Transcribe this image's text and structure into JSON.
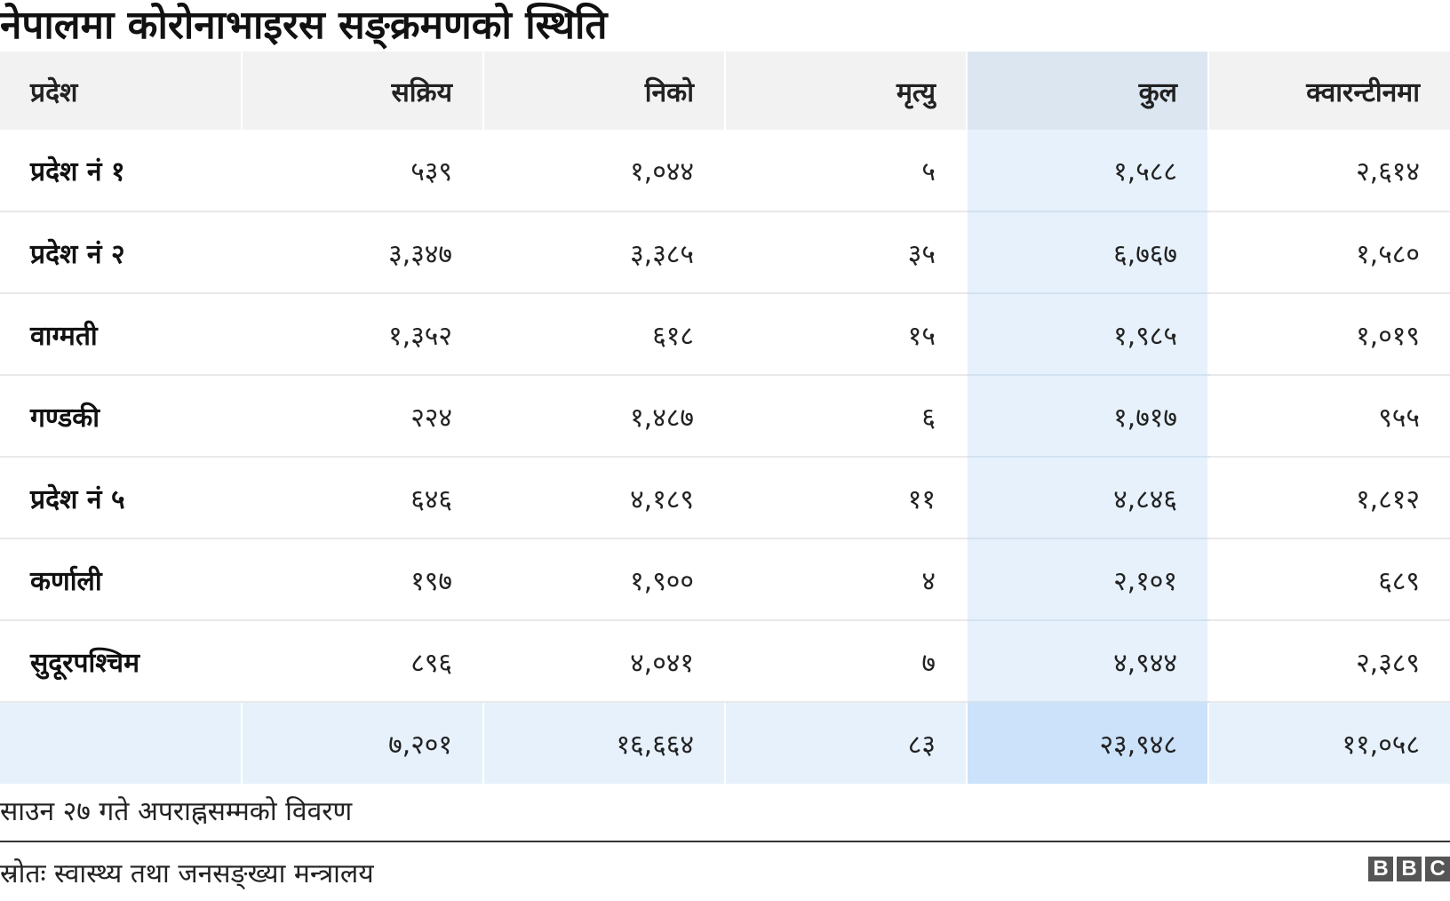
{
  "title": "नेपालमा कोरोनाभाइरस सङ्क्रमणको स्थिति",
  "chart_data": {
    "type": "table",
    "columns": [
      "प्रदेश",
      "सक्रिय",
      "निको",
      "मृत्यु",
      "कुल",
      "क्वारन्टीनमा"
    ],
    "highlight_column": "कुल",
    "highlight_color": "#e6f1fc",
    "rows": [
      [
        "प्रदेश नं १",
        "५३९",
        "१,०४४",
        "५",
        "१,५८८",
        "२,६१४"
      ],
      [
        "प्रदेश नं २",
        "३,३४७",
        "३,३८५",
        "३५",
        "६,७६७",
        "१,५८०"
      ],
      [
        "वाग्मती",
        "१,३५२",
        "६१८",
        "१५",
        "१,९८५",
        "१,०१९"
      ],
      [
        "गण्डकी",
        "२२४",
        "१,४८७",
        "६",
        "१,७१७",
        "९५५"
      ],
      [
        "प्रदेश नं ५",
        "६४६",
        "४,१८९",
        "११",
        "४,८४६",
        "१,८१२"
      ],
      [
        "कर्णाली",
        "१९७",
        "१,९००",
        "४",
        "२,१०१",
        "६८९"
      ],
      [
        "सुदूरपश्चिम",
        "८९६",
        "४,०४१",
        "७",
        "४,९४४",
        "२,३८९"
      ]
    ],
    "totals": [
      "",
      "७,२०१",
      "१६,६६४",
      "८३",
      "२३,९४८",
      "११,०५८"
    ]
  },
  "note": "साउन २७ गते अपराह्नसम्मको विवरण",
  "source": "स्रोतः स्वास्थ्य तथा जनसङ्ख्या मन्त्रालय",
  "logo": {
    "letters": [
      "B",
      "B",
      "C"
    ]
  }
}
